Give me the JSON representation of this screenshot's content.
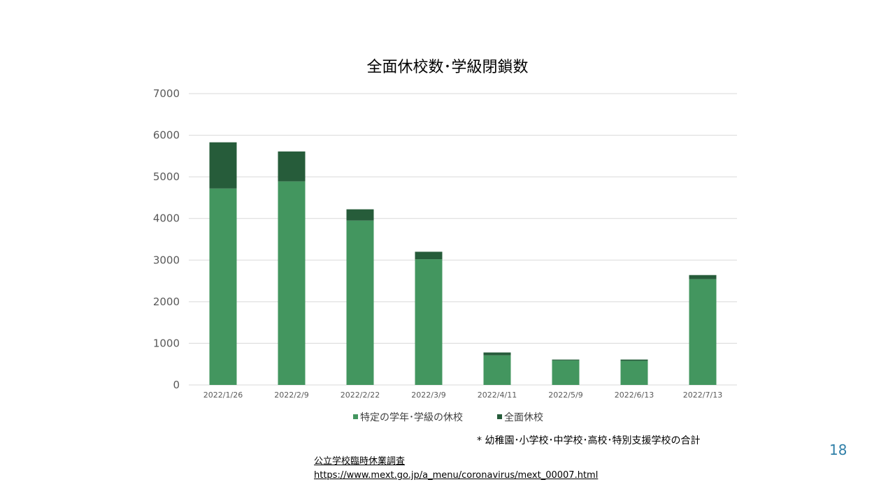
{
  "chart_data": {
    "type": "bar",
    "stacked": true,
    "title": "全面休校数･学級閉鎖数",
    "categories": [
      "2022/1/26",
      "2022/2/9",
      "2022/2/22",
      "2022/3/9",
      "2022/4/11",
      "2022/5/9",
      "2022/6/13",
      "2022/7/13"
    ],
    "series": [
      {
        "name": "特定の学年･学級の休校",
        "color": "#43965f",
        "values": [
          4720,
          4890,
          3950,
          3020,
          710,
          590,
          580,
          2540
        ]
      },
      {
        "name": "全面休校",
        "color": "#265c3a",
        "values": [
          1110,
          720,
          270,
          180,
          70,
          20,
          30,
          100
        ]
      }
    ],
    "ylim": [
      0,
      7000
    ],
    "yticks": [
      0,
      1000,
      2000,
      3000,
      4000,
      5000,
      6000,
      7000
    ],
    "grid": true,
    "legend": "bottom"
  },
  "footnote": "* 幼稚園･小学校･中学校･高校･特別支援学校の合計",
  "page_number": "18",
  "source": {
    "title": "公立学校臨時休業調査",
    "url": "https://www.mext.go.jp/a_menu/coronavirus/mext_00007.html"
  }
}
